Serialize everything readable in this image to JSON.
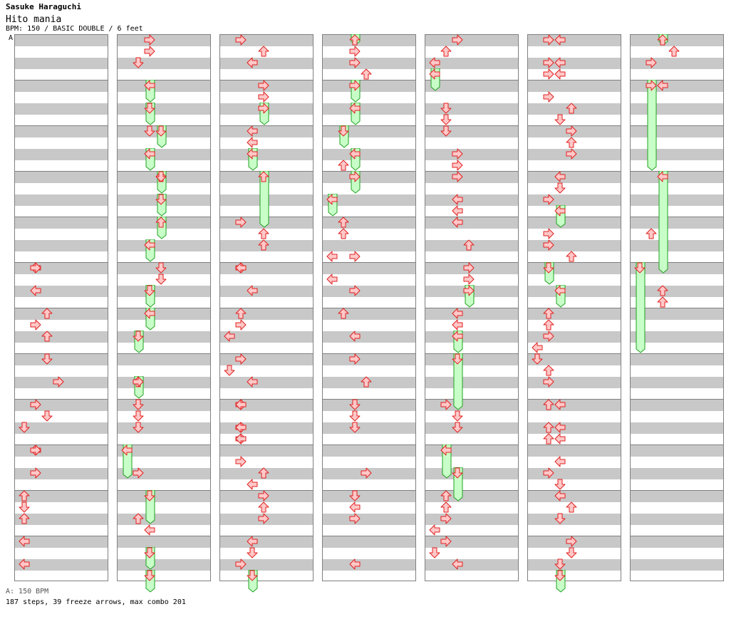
{
  "header": {
    "artist": "Sasuke Haraguchi",
    "title": "Hito mania",
    "meta": "BPM: 150 / BASIC DOUBLE / 6 feet",
    "bpm_marker_label": "A"
  },
  "footer": {
    "bpm_legend": "A: 150 BPM",
    "stats": "187 steps, 39 freeze arrows, max combo 201"
  },
  "colors": {
    "stripe": "#c8c8c8",
    "measure_line": "#808080",
    "arrow_fill": "#ffc8c8",
    "arrow_stroke": "#e02020",
    "freeze_fill": "#c8ffc8",
    "freeze_stroke": "#20a020",
    "bpm_line": "#4a90d9"
  },
  "chart": {
    "columns": [
      {
        "notes": [
          [
            20,
            1,
            "l"
          ],
          [
            20,
            1,
            "r"
          ],
          [
            22,
            1,
            "l"
          ],
          [
            24,
            2,
            "u"
          ],
          [
            25,
            1,
            "r"
          ],
          [
            26,
            2,
            "u"
          ],
          [
            28,
            2,
            "d"
          ],
          [
            30,
            3,
            "r"
          ],
          [
            32,
            1,
            "r"
          ],
          [
            33,
            2,
            "d"
          ],
          [
            34,
            0,
            "d"
          ],
          [
            36,
            1,
            "l"
          ],
          [
            36,
            1,
            "r"
          ],
          [
            38,
            1,
            "r"
          ],
          [
            40,
            0,
            "u"
          ],
          [
            41,
            0,
            "d"
          ],
          [
            42,
            0,
            "u"
          ],
          [
            44,
            0,
            "l"
          ],
          [
            46,
            0,
            "l"
          ]
        ],
        "freezes": []
      },
      {
        "notes": [
          [
            0,
            2,
            "r"
          ],
          [
            1,
            2,
            "r"
          ],
          [
            2,
            1,
            "d"
          ],
          [
            8,
            2,
            "d"
          ],
          [
            12,
            3,
            "d"
          ],
          [
            20,
            3,
            "d"
          ],
          [
            21,
            3,
            "d"
          ],
          [
            30,
            1,
            "r"
          ],
          [
            32,
            1,
            "d"
          ],
          [
            33,
            1,
            "d"
          ],
          [
            34,
            1,
            "d"
          ],
          [
            38,
            1,
            "r"
          ],
          [
            42,
            1,
            "u"
          ],
          [
            43,
            2,
            "l"
          ]
        ],
        "freezes": [
          [
            4,
            6,
            2,
            "l"
          ],
          [
            6,
            8,
            2,
            "d"
          ],
          [
            8,
            10,
            3,
            "d"
          ],
          [
            10,
            12,
            2,
            "l"
          ],
          [
            12,
            14,
            3,
            "u"
          ],
          [
            14,
            16,
            3,
            "d"
          ],
          [
            16,
            18,
            3,
            "u"
          ],
          [
            18,
            20,
            2,
            "l"
          ],
          [
            22,
            24,
            2,
            "d"
          ],
          [
            24,
            26,
            2,
            "l"
          ],
          [
            26,
            28,
            1,
            "d"
          ],
          [
            30,
            32,
            1,
            "u"
          ],
          [
            36,
            39,
            0,
            "l"
          ],
          [
            40,
            43,
            2,
            "d"
          ],
          [
            45,
            47,
            2,
            "d"
          ],
          [
            47,
            49,
            2,
            "d"
          ]
        ]
      },
      {
        "notes": [
          [
            0,
            1,
            "r"
          ],
          [
            1,
            3,
            "u"
          ],
          [
            2,
            2,
            "l"
          ],
          [
            4,
            3,
            "r"
          ],
          [
            5,
            3,
            "r"
          ],
          [
            8,
            2,
            "l"
          ],
          [
            9,
            2,
            "l"
          ],
          [
            16,
            1,
            "r"
          ],
          [
            17,
            3,
            "u"
          ],
          [
            18,
            3,
            "u"
          ],
          [
            20,
            1,
            "r"
          ],
          [
            20,
            1,
            "l"
          ],
          [
            22,
            2,
            "l"
          ],
          [
            24,
            1,
            "u"
          ],
          [
            25,
            1,
            "r"
          ],
          [
            26,
            0,
            "l"
          ],
          [
            28,
            1,
            "r"
          ],
          [
            29,
            0,
            "d"
          ],
          [
            30,
            2,
            "l"
          ],
          [
            32,
            1,
            "r"
          ],
          [
            32,
            1,
            "l"
          ],
          [
            34,
            1,
            "r"
          ],
          [
            34,
            1,
            "l"
          ],
          [
            35,
            1,
            "r"
          ],
          [
            35,
            1,
            "l"
          ],
          [
            37,
            1,
            "r"
          ],
          [
            38,
            3,
            "u"
          ],
          [
            39,
            2,
            "l"
          ],
          [
            40,
            3,
            "r"
          ],
          [
            41,
            3,
            "u"
          ],
          [
            42,
            3,
            "r"
          ],
          [
            44,
            2,
            "l"
          ],
          [
            45,
            2,
            "d"
          ],
          [
            46,
            1,
            "r"
          ]
        ],
        "freezes": [
          [
            6,
            8,
            3,
            "r"
          ],
          [
            10,
            12,
            2,
            "l"
          ],
          [
            12,
            17,
            3,
            "u"
          ],
          [
            47,
            49,
            2,
            "d"
          ]
        ]
      },
      {
        "notes": [
          [
            1,
            2,
            "r"
          ],
          [
            2,
            2,
            "r"
          ],
          [
            3,
            3,
            "u"
          ],
          [
            11,
            1,
            "u"
          ],
          [
            16,
            1,
            "u"
          ],
          [
            17,
            1,
            "u"
          ],
          [
            19,
            0,
            "l"
          ],
          [
            19,
            2,
            "r"
          ],
          [
            21,
            0,
            "l"
          ],
          [
            22,
            2,
            "r"
          ],
          [
            24,
            1,
            "u"
          ],
          [
            26,
            2,
            "l"
          ],
          [
            28,
            2,
            "r"
          ],
          [
            30,
            3,
            "u"
          ],
          [
            32,
            2,
            "d"
          ],
          [
            33,
            2,
            "d"
          ],
          [
            34,
            2,
            "d"
          ],
          [
            38,
            3,
            "r"
          ],
          [
            40,
            2,
            "d"
          ],
          [
            41,
            2,
            "l"
          ],
          [
            42,
            2,
            "r"
          ],
          [
            46,
            2,
            "l"
          ]
        ],
        "freezes": [
          [
            0,
            1,
            2,
            "u"
          ],
          [
            4,
            6,
            2,
            "r"
          ],
          [
            6,
            8,
            2,
            "l"
          ],
          [
            8,
            10,
            1,
            "d"
          ],
          [
            10,
            12,
            2,
            "l"
          ],
          [
            12,
            14,
            2,
            "r"
          ],
          [
            14,
            16,
            0,
            "l"
          ]
        ]
      },
      {
        "notes": [
          [
            0,
            2,
            "r"
          ],
          [
            1,
            1,
            "u"
          ],
          [
            2,
            0,
            "l"
          ],
          [
            6,
            1,
            "d"
          ],
          [
            7,
            1,
            "d"
          ],
          [
            8,
            1,
            "d"
          ],
          [
            10,
            2,
            "r"
          ],
          [
            11,
            2,
            "r"
          ],
          [
            12,
            2,
            "r"
          ],
          [
            14,
            2,
            "l"
          ],
          [
            15,
            2,
            "l"
          ],
          [
            16,
            2,
            "l"
          ],
          [
            18,
            3,
            "u"
          ],
          [
            20,
            3,
            "r"
          ],
          [
            21,
            3,
            "r"
          ],
          [
            24,
            2,
            "l"
          ],
          [
            25,
            2,
            "l"
          ],
          [
            32,
            1,
            "r"
          ],
          [
            33,
            2,
            "d"
          ],
          [
            34,
            2,
            "d"
          ],
          [
            40,
            1,
            "u"
          ],
          [
            41,
            1,
            "u"
          ],
          [
            42,
            1,
            "r"
          ],
          [
            43,
            0,
            "l"
          ],
          [
            44,
            1,
            "r"
          ],
          [
            45,
            0,
            "d"
          ],
          [
            46,
            2,
            "l"
          ]
        ],
        "freezes": [
          [
            3,
            5,
            0,
            "l"
          ],
          [
            22,
            24,
            3,
            "r"
          ],
          [
            26,
            28,
            2,
            "l"
          ],
          [
            28,
            33,
            2,
            "d"
          ],
          [
            36,
            39,
            1,
            "l"
          ],
          [
            38,
            41,
            2,
            "d"
          ]
        ]
      },
      {
        "notes": [
          [
            0,
            1,
            "r"
          ],
          [
            0,
            2,
            "l"
          ],
          [
            2,
            1,
            "r"
          ],
          [
            2,
            2,
            "l"
          ],
          [
            3,
            1,
            "r"
          ],
          [
            3,
            2,
            "l"
          ],
          [
            5,
            1,
            "r"
          ],
          [
            6,
            3,
            "u"
          ],
          [
            7,
            2,
            "d"
          ],
          [
            8,
            3,
            "r"
          ],
          [
            9,
            3,
            "u"
          ],
          [
            10,
            3,
            "r"
          ],
          [
            12,
            2,
            "l"
          ],
          [
            13,
            2,
            "d"
          ],
          [
            14,
            1,
            "r"
          ],
          [
            17,
            1,
            "r"
          ],
          [
            18,
            1,
            "r"
          ],
          [
            19,
            3,
            "u"
          ],
          [
            24,
            1,
            "u"
          ],
          [
            25,
            1,
            "u"
          ],
          [
            26,
            1,
            "r"
          ],
          [
            27,
            0,
            "l"
          ],
          [
            28,
            0,
            "d"
          ],
          [
            29,
            1,
            "u"
          ],
          [
            30,
            1,
            "r"
          ],
          [
            32,
            1,
            "u"
          ],
          [
            32,
            2,
            "l"
          ],
          [
            34,
            1,
            "u"
          ],
          [
            34,
            2,
            "l"
          ],
          [
            35,
            1,
            "u"
          ],
          [
            35,
            2,
            "l"
          ],
          [
            37,
            2,
            "l"
          ],
          [
            38,
            1,
            "r"
          ],
          [
            39,
            2,
            "d"
          ],
          [
            40,
            2,
            "l"
          ],
          [
            41,
            3,
            "u"
          ],
          [
            42,
            2,
            "d"
          ],
          [
            44,
            3,
            "r"
          ],
          [
            45,
            3,
            "d"
          ],
          [
            46,
            2,
            "d"
          ]
        ],
        "freezes": [
          [
            15,
            17,
            2,
            "l"
          ],
          [
            20,
            22,
            1,
            "d"
          ],
          [
            22,
            24,
            2,
            "l"
          ],
          [
            47,
            49,
            2,
            "d"
          ]
        ]
      },
      {
        "notes": [
          [
            1,
            3,
            "u"
          ],
          [
            2,
            1,
            "r"
          ],
          [
            4,
            2,
            "l"
          ],
          [
            17,
            1,
            "u"
          ],
          [
            22,
            2,
            "u"
          ],
          [
            23,
            2,
            "u"
          ]
        ],
        "freezes": [
          [
            0,
            1,
            2,
            "u"
          ],
          [
            4,
            12,
            1,
            "r"
          ],
          [
            12,
            21,
            2,
            "l"
          ],
          [
            20,
            28,
            0,
            "d"
          ]
        ]
      }
    ]
  }
}
